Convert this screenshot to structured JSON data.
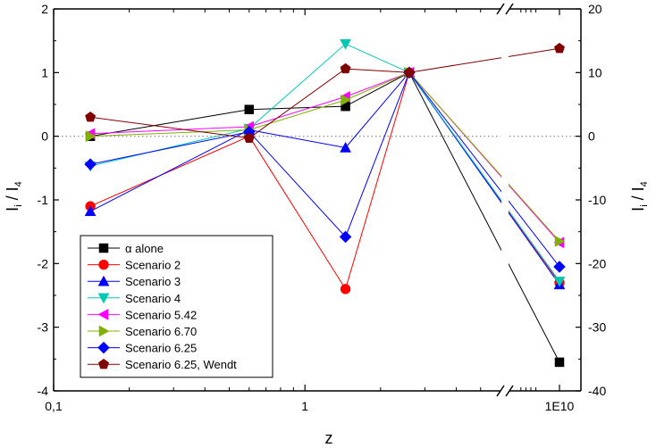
{
  "chart_data": {
    "type": "line",
    "title": "",
    "xlabel": "z",
    "ylabel_left": "Ī_i / Ī_4",
    "ylabel_right": "Ī_i / Ī_4",
    "xlabel_parts": {
      "main": "z"
    },
    "ylabel_parts": {
      "i_main": "I",
      "i_sub": "i",
      "sep": " / ",
      "d_main": "I",
      "d_sub": "4"
    },
    "x_scale": "log, broken before 1E10",
    "x_ticks": [
      "0,1",
      "1",
      "1E10"
    ],
    "y_left": {
      "range": [
        -4,
        2
      ],
      "ticks": [
        "-4",
        "-3",
        "-2",
        "-1",
        "0",
        "1",
        "2"
      ]
    },
    "y_right": {
      "range": [
        -40,
        20
      ],
      "ticks": [
        "-40",
        "-30",
        "-20",
        "-10",
        "0",
        "10",
        "20"
      ]
    },
    "x": [
      0.14,
      0.6,
      1.45,
      2.6,
      10000000000.0
    ],
    "reference_line": 0,
    "legend_position": "lower-left",
    "series": [
      {
        "name": "α alone",
        "color": "#000000",
        "marker": "square",
        "values": [
          0.0,
          0.42,
          0.47,
          1.0,
          -3.55
        ]
      },
      {
        "name": "Scenario 2",
        "color": "#ff0000",
        "marker": "circle",
        "values": [
          -1.1,
          0.0,
          -2.4,
          1.0,
          -2.3
        ]
      },
      {
        "name": "Scenario 3",
        "color": "#0000ff",
        "marker": "triangle-up",
        "values": [
          -1.18,
          0.1,
          -0.18,
          1.0,
          -2.33
        ]
      },
      {
        "name": "Scenario 4",
        "color": "#00c8b4",
        "marker": "triangle-down",
        "values": [
          -0.47,
          0.12,
          1.45,
          1.0,
          -2.28
        ]
      },
      {
        "name": "Scenario 5.42",
        "color": "#ff00ff",
        "marker": "triangle-left",
        "values": [
          0.04,
          0.15,
          0.62,
          1.0,
          -1.67
        ]
      },
      {
        "name": "Scenario 6.70",
        "color": "#80b000",
        "marker": "triangle-right",
        "values": [
          0.0,
          0.1,
          0.57,
          1.0,
          -1.65
        ]
      },
      {
        "name": "Scenario 6.25",
        "color": "#0000ff",
        "marker": "diamond",
        "values": [
          -0.44,
          0.07,
          -1.58,
          1.0,
          -2.05
        ]
      },
      {
        "name": "Scenario 6.25, Wendt",
        "color": "#800000",
        "marker": "pentagon",
        "values": [
          0.3,
          -0.03,
          1.06,
          1.0,
          1.38
        ]
      }
    ]
  }
}
